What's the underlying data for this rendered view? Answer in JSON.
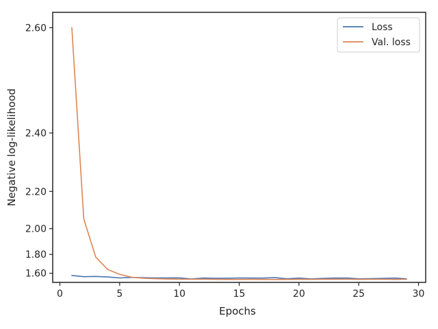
{
  "chart_data": {
    "type": "line",
    "xlabel": "Epochs",
    "ylabel": "Negative log-likelihood",
    "xlim": [
      -0.6,
      30.6
    ],
    "ylim": [
      1.48,
      2.62
    ],
    "y_scale": "nonlinear (tick positions follow a compressive transform of the value)",
    "x_ticks": [
      0,
      5,
      10,
      15,
      20,
      25,
      30
    ],
    "x_tick_labels": [
      "0",
      "5",
      "10",
      "15",
      "20",
      "25",
      "30"
    ],
    "y_ticks": [
      1.6,
      1.8,
      2.0,
      2.2,
      2.4,
      2.6
    ],
    "y_tick_labels": [
      "1.60",
      "1.80",
      "2.00",
      "2.20",
      "2.40",
      "2.60"
    ],
    "grid": false,
    "legend_position": "top-right",
    "x": [
      1,
      2,
      3,
      4,
      5,
      6,
      7,
      8,
      9,
      10,
      11,
      12,
      13,
      14,
      15,
      16,
      17,
      18,
      19,
      20,
      21,
      22,
      23,
      24,
      25,
      26,
      27,
      28,
      29
    ],
    "series": [
      {
        "name": "Loss",
        "color": "#4c72b0",
        "values": [
          1.573,
          1.557,
          1.561,
          1.554,
          1.541,
          1.548,
          1.544,
          1.541,
          1.541,
          1.542,
          1.527,
          1.539,
          1.537,
          1.537,
          1.541,
          1.539,
          1.539,
          1.545,
          1.529,
          1.539,
          1.528,
          1.535,
          1.539,
          1.54,
          1.529,
          1.532,
          1.535,
          1.539,
          1.529
        ]
      },
      {
        "name": "Val. loss",
        "color": "#dd8452",
        "values": [
          2.6,
          2.06,
          1.775,
          1.645,
          1.587,
          1.55,
          1.537,
          1.531,
          1.527,
          1.524,
          1.524,
          1.524,
          1.522,
          1.521,
          1.521,
          1.522,
          1.521,
          1.52,
          1.521,
          1.522,
          1.522,
          1.523,
          1.523,
          1.524,
          1.522,
          1.523,
          1.524,
          1.521,
          1.524
        ]
      }
    ]
  }
}
